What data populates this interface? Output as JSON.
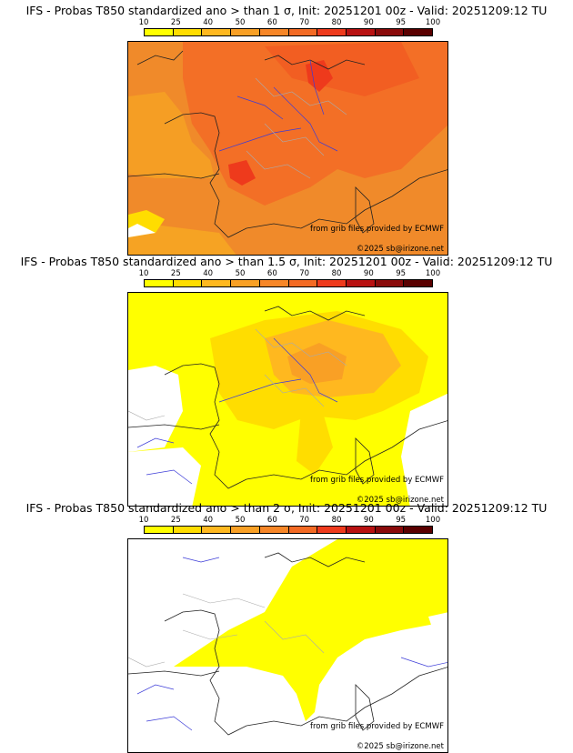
{
  "colorbar": {
    "ticks": [
      "10",
      "25",
      "40",
      "50",
      "60",
      "70",
      "80",
      "90",
      "95",
      "100"
    ],
    "colors": [
      "#ffff00",
      "#ffdd00",
      "#ffb81f",
      "#f9a025",
      "#f78627",
      "#f36a24",
      "#ee3a1c",
      "#b81111",
      "#8a0a0a",
      "#5a0000"
    ]
  },
  "panels": [
    {
      "title": "IFS - Probas T850  standardized ano > than 1 σ, Init: 20251201 00z - Valid: 20251209:12 TU",
      "credit_source": "from grib files provided by ECMWF",
      "credit_copyright": "©2025 sb@irizone.net"
    },
    {
      "title": "IFS - Probas T850  standardized ano > than 1.5 σ, Init: 20251201 00z - Valid: 20251209:12 TU",
      "credit_source": "from grib files provided by ECMWF",
      "credit_copyright": "©2025 sb@irizone.net"
    },
    {
      "title": "IFS - Probas T850  standardized ano > than 2 σ, Init: 20251201 00z - Valid: 20251209:12 TU",
      "credit_source": "from grib files provided by ECMWF",
      "credit_copyright": "©2025 sb@irizone.net"
    }
  ]
}
